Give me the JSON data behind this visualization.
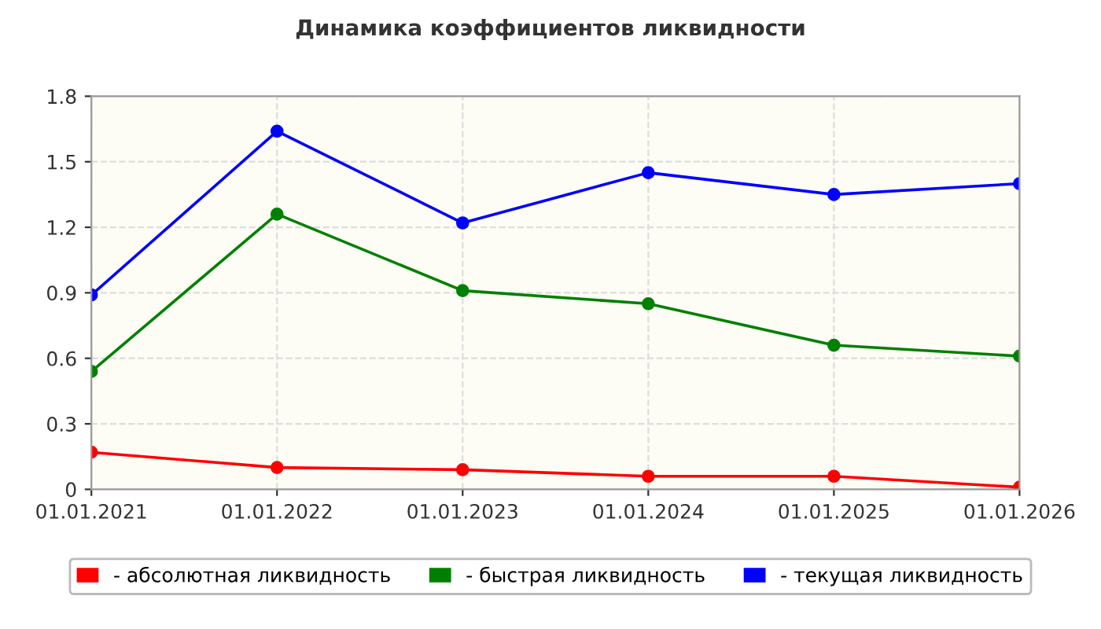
{
  "chart_data": {
    "type": "line",
    "title": "Динамика коэффициентов ликвидности",
    "categories": [
      "01.01.2021",
      "01.01.2022",
      "01.01.2023",
      "01.01.2024",
      "01.01.2025",
      "01.01.2026"
    ],
    "series": [
      {
        "name": "- абсолютная ликвидность",
        "color": "#ff0000",
        "values": [
          0.17,
          0.1,
          0.09,
          0.06,
          0.06,
          0.01
        ]
      },
      {
        "name": "- быстрая ликвидность",
        "color": "#008000",
        "values": [
          0.54,
          1.26,
          0.91,
          0.85,
          0.66,
          0.61
        ]
      },
      {
        "name": "- текущая ликвидность",
        "color": "#0000ff",
        "values": [
          0.89,
          1.64,
          1.22,
          1.45,
          1.35,
          1.4
        ]
      }
    ],
    "ylim": [
      0,
      1.8
    ],
    "yticks": [
      0,
      0.3,
      0.6,
      0.9,
      1.2,
      1.5,
      1.8
    ],
    "grid": true,
    "legend": "bottom",
    "marker": "circle",
    "line_style": "solid"
  }
}
